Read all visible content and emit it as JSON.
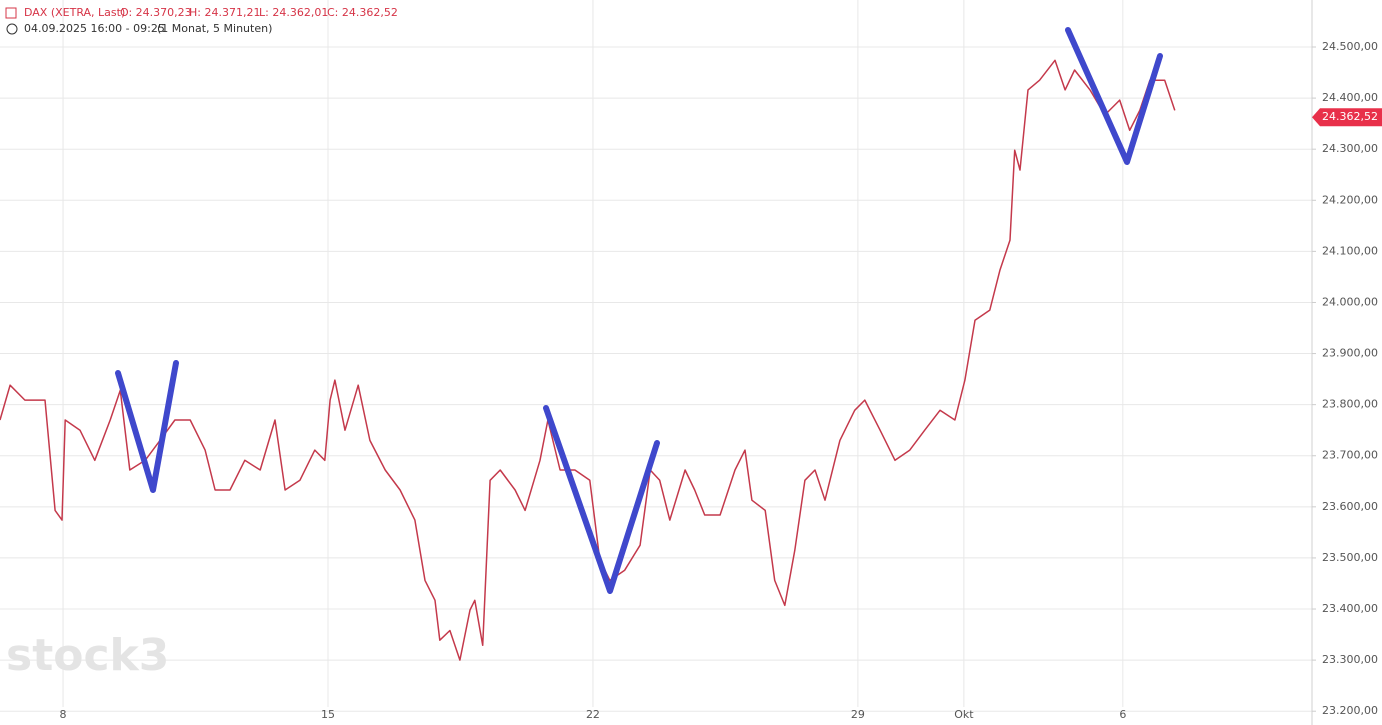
{
  "chart_data": {
    "type": "line",
    "title": "DAX (XETRA, Last)",
    "ohlc": {
      "open": "O: 24.370,23",
      "high": "H: 24.371,21",
      "low": "L: 24.362,01",
      "close": "C: 24.362,52"
    },
    "subtitle": "04.09.2025 16:00 - 09:25",
    "period": "(1 Monat, 5 Minuten)",
    "watermark": "stock3",
    "last_price": {
      "value": 24362.52,
      "label": "24.362,52"
    },
    "x": [
      -1.19,
      -1.0,
      -0.72,
      -0.34,
      -0.15,
      -0.02,
      0.04,
      0.32,
      0.6,
      0.89,
      1.08,
      1.26,
      1.55,
      1.83,
      2.11,
      2.4,
      2.68,
      2.87,
      3.15,
      3.43,
      3.72,
      4.0,
      4.19,
      4.47,
      4.75,
      4.94,
      5.04,
      5.13,
      5.32,
      5.57,
      5.79,
      6.08,
      6.36,
      6.64,
      6.83,
      7.02,
      7.11,
      7.3,
      7.49,
      7.68,
      7.77,
      7.92,
      8.06,
      8.25,
      8.53,
      8.72,
      9.0,
      9.15,
      9.38,
      9.66,
      9.94,
      10.13,
      10.32,
      10.6,
      10.89,
      11.08,
      11.26,
      11.45,
      11.74,
      11.92,
      12.11,
      12.4,
      12.68,
      12.87,
      13.0,
      13.25,
      13.43,
      13.62,
      13.81,
      14.0,
      14.19,
      14.38,
      14.66,
      14.94,
      15.13,
      15.42,
      15.7,
      15.98,
      16.26,
      16.55,
      16.83,
      17.02,
      17.21,
      17.49,
      17.68,
      17.87,
      17.96,
      18.06,
      18.21,
      18.43,
      18.72,
      18.91,
      19.09,
      19.38,
      19.66,
      19.94,
      20.13,
      20.32,
      20.51,
      20.79,
      20.98
    ],
    "series": [
      {
        "color": "#c4394b",
        "values": [
          23770,
          23838,
          23809,
          23809,
          23593,
          23574,
          23770,
          23750,
          23691,
          23770,
          23828,
          23672,
          23691,
          23730,
          23770,
          23770,
          23711,
          23633,
          23633,
          23691,
          23672,
          23770,
          23633,
          23652,
          23711,
          23691,
          23809,
          23848,
          23750,
          23838,
          23730,
          23672,
          23633,
          23574,
          23456,
          23417,
          23339,
          23358,
          23300,
          23398,
          23417,
          23329,
          23652,
          23672,
          23633,
          23593,
          23691,
          23770,
          23672,
          23672,
          23652,
          23496,
          23456,
          23476,
          23525,
          23672,
          23652,
          23574,
          23672,
          23633,
          23584,
          23584,
          23672,
          23711,
          23613,
          23593,
          23456,
          23407,
          23515,
          23652,
          23672,
          23613,
          23730,
          23789,
          23809,
          23750,
          23691,
          23711,
          23750,
          23789,
          23770,
          23848,
          23965,
          23985,
          24063,
          24122,
          24298,
          24259,
          24416,
          24435,
          24474,
          24416,
          24455,
          24416,
          24367,
          24396,
          24337,
          24376,
          24435,
          24435,
          24376
        ]
      }
    ],
    "xlim": [
      -1.19,
      23.57
    ],
    "xticks": [
      {
        "value": 0,
        "label": "8"
      },
      {
        "value": 5,
        "label": "15"
      },
      {
        "value": 10,
        "label": "22"
      },
      {
        "value": 15,
        "label": "29"
      },
      {
        "value": 17,
        "label": "Okt"
      },
      {
        "value": 20,
        "label": "6"
      }
    ],
    "ylim": [
      23173,
      24592
    ],
    "yticks": [
      {
        "value": 23200,
        "label": "23.200,00"
      },
      {
        "value": 23300,
        "label": "23.300,00"
      },
      {
        "value": 23400,
        "label": "23.400,00"
      },
      {
        "value": 23500,
        "label": "23.500,00"
      },
      {
        "value": 23600,
        "label": "23.600,00"
      },
      {
        "value": 23700,
        "label": "23.700,00"
      },
      {
        "value": 23800,
        "label": "23.800,00"
      },
      {
        "value": 23900,
        "label": "23.900,00"
      },
      {
        "value": 24000,
        "label": "24.000,00"
      },
      {
        "value": 24100,
        "label": "24.100,00"
      },
      {
        "value": 24200,
        "label": "24.200,00"
      },
      {
        "value": 24300,
        "label": "24.300,00"
      },
      {
        "value": 24400,
        "label": "24.400,00"
      },
      {
        "value": 24500,
        "label": "24.500,00"
      }
    ],
    "grid": true
  }
}
